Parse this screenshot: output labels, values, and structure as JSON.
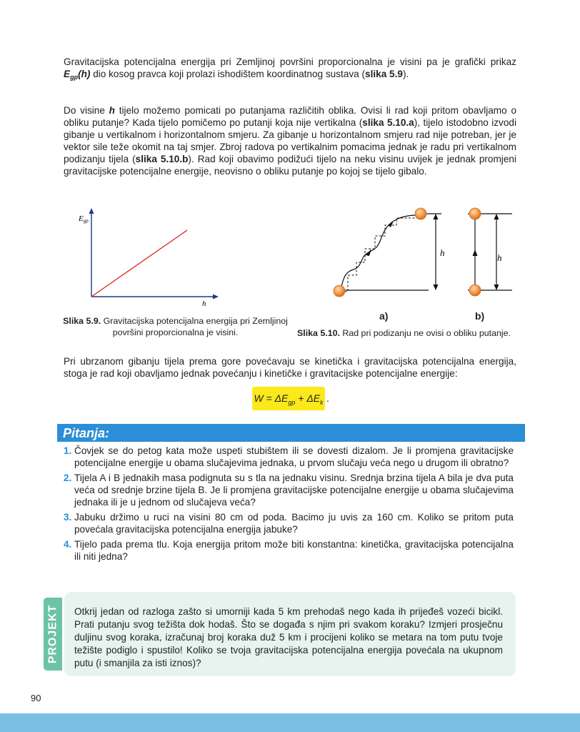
{
  "paragraph1": {
    "part1": "Gravitacijska potencijalna energija pri Zemljinoj površini proporcionalna je visini pa je grafički prikaz ",
    "E": "E",
    "sub": "gp",
    "h": "(h)",
    "part2": " dio kosog pravca koji prolazi ishodištem koordinatnog sustava (",
    "ref": "slika 5.9",
    "part3": ")."
  },
  "paragraph2": {
    "t1": "Do visine ",
    "h": "h",
    "t2": " tijelo možemo pomicati po putanjama različitih oblika. Ovisi li rad koji pritom obavljamo o obliku putanje? Kada tijelo pomičemo po putanji koja nije vertikalna (",
    "ref1": "slika 5.10.a",
    "t3": "), tijelo istodobno izvodi gibanje u vertikalnom i horizontalnom smjeru. Za gibanje u horizontalnom smjeru rad nije potreban, jer je vektor sile teže okomit na taj smjer. Zbroj radova po vertikalnim pomacima jednak je radu pri vertikalnom podizanju tijela (",
    "ref2": "slika 5.10.b",
    "t4": "). Rad koji obavimo podižući tijelo na neku visinu uvijek je jednak promjeni gravitacijske potencijalne energije, neovisno o obliku putanje po kojoj se tijelo gibalo."
  },
  "figure59": {
    "y_axis_label": "E",
    "y_axis_sub": "gp",
    "x_axis_label": "h",
    "caption_ref": "Slika 5.9.",
    "caption_text": " Gravitacijska potencijalna energija pri Zemljinoj",
    "caption_text2": "površini proporcionalna je visini."
  },
  "figure510": {
    "h_label_a": "h",
    "h_label_b": "h",
    "label_a": "a)",
    "label_b": "b)",
    "caption_ref": "Slika 5.10.",
    "caption_text": " Rad pri podizanju ne ovisi o obliku putanje."
  },
  "paragraph3": "Pri ubrzanom gibanju tijela prema gore povećavaju se kinetička i gravitacijska potencijalna energija, stoga je rad koji obavljamo jednak povećanju i kinetičke i gravitacijske potencijalne energije:",
  "formula": {
    "lhs": "W = ΔE",
    "sub1": "gp",
    "plus": " + ΔE",
    "sub2": "k",
    "dot": "."
  },
  "questions": {
    "title": "Pitanja:",
    "items": [
      {
        "num": "1.",
        "text": "Čovjek se do petog kata može uspeti stubištem ili se dovesti dizalom. Je li promjena gravitacijske potencijalne energije u obama slučajevima jednaka, u prvom slučaju veća nego u drugom ili obratno?"
      },
      {
        "num": "2.",
        "text": "Tijela A i B jednakih masa podignuta su s tla na jednaku visinu. Srednja brzina tijela A bila je dva puta veća od srednje brzine tijela B. Je li promjena gravitacijske potencijalne energije u obama slučajevima jednaka ili je u jednom od slučajeva veća?"
      },
      {
        "num": "3.",
        "text": "Jabuku držimo u ruci na visini 80 cm od poda. Bacimo ju uvis za 160 cm. Koliko se pritom puta povećala gravitacijska potencijalna energija jabuke?"
      },
      {
        "num": "4.",
        "text": "Tijelo pada prema tlu. Koja energija pritom može biti konstantna: kinetička, gravitacijska potencijalna ili niti jedna?"
      }
    ]
  },
  "project": {
    "label": "PROJEKT",
    "text": "Otkrij jedan od razloga zašto si umorniji kada 5 km prehodaš nego kada ih prijeđeš vozeći bicikl. Prati putanju svog težišta dok hodaš. Što se događa s njim pri svakom koraku? Izmjeri prosječnu duljinu svog koraka, izračunaj broj koraka duž 5 km i procijeni koliko se metara na tom putu tvoje težište podiglo i spustilo! Koliko se tvoja gravitacijska potencijalna energija povećala na ukupnom putu (i smanjila za isti iznos)?"
  },
  "page_number": "90",
  "colors": {
    "accent_blue": "#2b8ed6",
    "formula_yellow": "#fbe91c",
    "project_green": "#6cc3a6",
    "graph_line_red": "#e02020",
    "ball_orange": "#f0a050"
  }
}
